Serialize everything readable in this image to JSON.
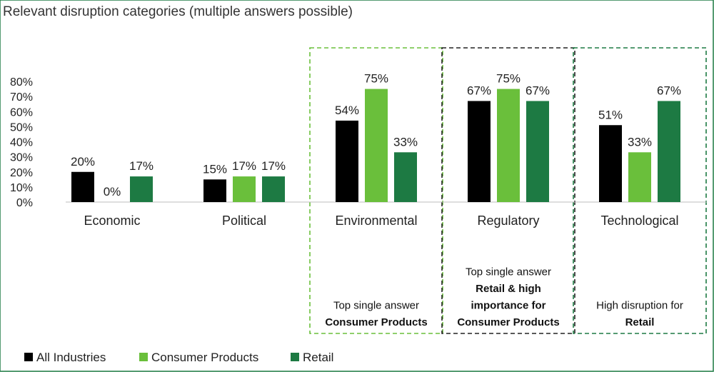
{
  "colors": {
    "all_industries": "#000000",
    "consumer_products": "#6abf3b",
    "retail": "#1d7a43",
    "box_consumer": "#6abf3b",
    "box_regulatory": "#222222",
    "box_retail": "#1d7a43",
    "frame": "#1d7a43"
  },
  "chart_data": {
    "type": "bar",
    "title": "Relevant disruption categories (multiple answers possible)",
    "categories": [
      "Economic",
      "Political",
      "Environmental",
      "Regulatory",
      "Technological"
    ],
    "series": [
      {
        "name": "All Industries",
        "values": [
          20,
          15,
          54,
          67,
          51
        ]
      },
      {
        "name": "Consumer Products",
        "values": [
          0,
          17,
          75,
          75,
          33
        ]
      },
      {
        "name": "Retail",
        "values": [
          17,
          17,
          33,
          67,
          67
        ]
      }
    ],
    "value_labels": [
      [
        "20%",
        "15%",
        "54%",
        "67%",
        "51%"
      ],
      [
        "0%",
        "17%",
        "75%",
        "75%",
        "33%"
      ],
      [
        "17%",
        "17%",
        "33%",
        "67%",
        "67%"
      ]
    ],
    "ylim": [
      0,
      80
    ],
    "yticks": [
      "0%",
      "10%",
      "20%",
      "30%",
      "40%",
      "50%",
      "60%",
      "70%",
      "80%"
    ],
    "grid": false,
    "legend": "bottom-left",
    "annotations": [
      {
        "category": "Environmental",
        "lines": [
          "Top single answer",
          "Consumer Products"
        ],
        "bold_from": 1
      },
      {
        "category": "Regulatory",
        "lines": [
          "Top single answer",
          "Retail & high",
          "importance for",
          "Consumer Products"
        ],
        "bold_from": 1
      },
      {
        "category": "Technological",
        "lines": [
          "High disruption for",
          "Retail"
        ],
        "bold_from": 1
      }
    ]
  }
}
